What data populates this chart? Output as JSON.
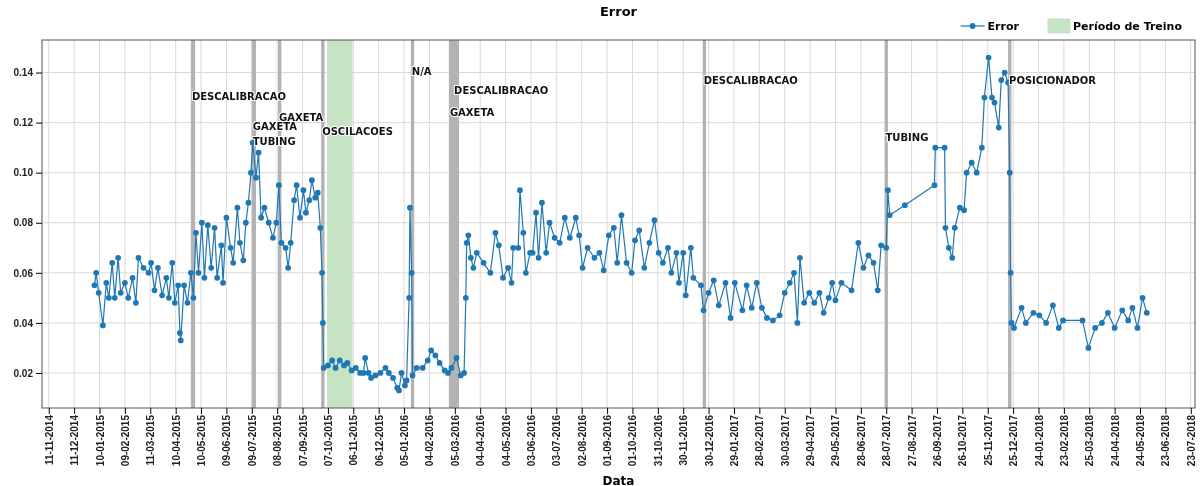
{
  "chart_data": {
    "type": "line",
    "title": "Error",
    "xlabel": "Data",
    "xlim": [
      "2014-11-03",
      "2018-07-28"
    ],
    "xticks": [
      {
        "value": "2014-11-11",
        "label": "11-11-2014"
      },
      {
        "value": "2014-12-11",
        "label": "11-12-2014"
      },
      {
        "value": "2015-01-10",
        "label": "10-01-2015"
      },
      {
        "value": "2015-02-09",
        "label": "09-02-2015"
      },
      {
        "value": "2015-03-11",
        "label": "11-03-2015"
      },
      {
        "value": "2015-04-10",
        "label": "10-04-2015"
      },
      {
        "value": "2015-05-10",
        "label": "10-05-2015"
      },
      {
        "value": "2015-06-09",
        "label": "09-06-2015"
      },
      {
        "value": "2015-07-09",
        "label": "09-07-2015"
      },
      {
        "value": "2015-08-08",
        "label": "08-08-2015"
      },
      {
        "value": "2015-09-07",
        "label": "07-09-2015"
      },
      {
        "value": "2015-10-07",
        "label": "07-10-2015"
      },
      {
        "value": "2015-11-06",
        "label": "06-11-2015"
      },
      {
        "value": "2015-12-06",
        "label": "06-12-2015"
      },
      {
        "value": "2016-01-05",
        "label": "05-01-2016"
      },
      {
        "value": "2016-02-04",
        "label": "04-02-2016"
      },
      {
        "value": "2016-03-05",
        "label": "05-03-2016"
      },
      {
        "value": "2016-04-04",
        "label": "04-04-2016"
      },
      {
        "value": "2016-05-04",
        "label": "04-05-2016"
      },
      {
        "value": "2016-06-03",
        "label": "03-06-2016"
      },
      {
        "value": "2016-07-03",
        "label": "03-07-2016"
      },
      {
        "value": "2016-08-02",
        "label": "02-08-2016"
      },
      {
        "value": "2016-09-01",
        "label": "01-09-2016"
      },
      {
        "value": "2016-10-01",
        "label": "01-10-2016"
      },
      {
        "value": "2016-10-31",
        "label": "31-10-2016"
      },
      {
        "value": "2016-11-30",
        "label": "30-11-2016"
      },
      {
        "value": "2016-12-30",
        "label": "30-12-2016"
      },
      {
        "value": "2017-01-29",
        "label": "29-01-2017"
      },
      {
        "value": "2017-02-28",
        "label": "28-02-2017"
      },
      {
        "value": "2017-03-30",
        "label": "30-03-2017"
      },
      {
        "value": "2017-04-29",
        "label": "29-04-2017"
      },
      {
        "value": "2017-05-29",
        "label": "29-05-2017"
      },
      {
        "value": "2017-06-28",
        "label": "28-06-2017"
      },
      {
        "value": "2017-07-28",
        "label": "28-07-2017"
      },
      {
        "value": "2017-08-27",
        "label": "27-08-2017"
      },
      {
        "value": "2017-09-26",
        "label": "26-09-2017"
      },
      {
        "value": "2017-10-26",
        "label": "26-10-2017"
      },
      {
        "value": "2017-11-25",
        "label": "25-11-2017"
      },
      {
        "value": "2017-12-25",
        "label": "25-12-2017"
      },
      {
        "value": "2018-01-24",
        "label": "24-01-2018"
      },
      {
        "value": "2018-02-23",
        "label": "23-02-2018"
      },
      {
        "value": "2018-03-25",
        "label": "25-03-2018"
      },
      {
        "value": "2018-04-24",
        "label": "24-04-2018"
      },
      {
        "value": "2018-05-24",
        "label": "24-05-2018"
      },
      {
        "value": "2018-06-23",
        "label": "23-06-2018"
      },
      {
        "value": "2018-07-23",
        "label": "23-07-2018"
      }
    ],
    "ylim": [
      0.006,
      0.153
    ],
    "yticks": [
      {
        "value": 0.02,
        "label": "0.02"
      },
      {
        "value": 0.04,
        "label": "0.04"
      },
      {
        "value": 0.06,
        "label": "0.06"
      },
      {
        "value": 0.08,
        "label": "0.08"
      },
      {
        "value": 0.1,
        "label": "0.10"
      },
      {
        "value": 0.12,
        "label": "0.12"
      },
      {
        "value": 0.14,
        "label": "0.14"
      }
    ],
    "grid": true,
    "legend": "top right",
    "marker": "circle",
    "line_style": "solid",
    "series": [
      {
        "name": "Error",
        "color": "#1f77b4",
        "x": [
          "2015-01-04",
          "2015-01-06",
          "2015-01-09",
          "2015-01-14",
          "2015-01-18",
          "2015-01-21",
          "2015-01-25",
          "2015-01-28",
          "2015-02-01",
          "2015-02-04",
          "2015-02-09",
          "2015-02-13",
          "2015-02-18",
          "2015-02-22",
          "2015-02-25",
          "2015-03-03",
          "2015-03-09",
          "2015-03-12",
          "2015-03-16",
          "2015-03-20",
          "2015-03-25",
          "2015-03-30",
          "2015-04-02",
          "2015-04-06",
          "2015-04-09",
          "2015-04-13",
          "2015-04-15",
          "2015-04-16",
          "2015-04-20",
          "2015-04-24",
          "2015-04-28",
          "2015-05-01",
          "2015-05-04",
          "2015-05-07",
          "2015-05-11",
          "2015-05-14",
          "2015-05-18",
          "2015-05-22",
          "2015-05-26",
          "2015-05-29",
          "2015-06-03",
          "2015-06-05",
          "2015-06-09",
          "2015-06-14",
          "2015-06-17",
          "2015-06-22",
          "2015-06-25",
          "2015-06-29",
          "2015-07-02",
          "2015-07-05",
          "2015-07-08",
          "2015-07-10",
          "2015-07-14",
          "2015-07-17",
          "2015-07-20",
          "2015-07-24",
          "2015-07-29",
          "2015-08-03",
          "2015-08-07",
          "2015-08-10",
          "2015-08-13",
          "2015-08-18",
          "2015-08-21",
          "2015-08-24",
          "2015-08-28",
          "2015-08-31",
          "2015-09-04",
          "2015-09-08",
          "2015-09-11",
          "2015-09-15",
          "2015-09-18",
          "2015-09-22",
          "2015-09-25",
          "2015-09-28",
          "2015-09-30",
          "2015-10-01",
          "2015-10-02",
          "2015-10-07",
          "2015-10-12",
          "2015-10-16",
          "2015-10-21",
          "2015-10-26",
          "2015-10-30",
          "2015-11-04",
          "2015-11-09",
          "2015-11-14",
          "2015-11-18",
          "2015-11-20",
          "2015-11-24",
          "2015-11-27",
          "2015-12-02",
          "2015-12-08",
          "2015-12-14",
          "2015-12-18",
          "2015-12-23",
          "2015-12-28",
          "2015-12-30",
          "2016-01-02",
          "2016-01-06",
          "2016-01-08",
          "2016-01-11",
          "2016-01-12",
          "2016-01-14",
          "2016-01-15",
          "2016-01-20",
          "2016-01-27",
          "2016-02-02",
          "2016-02-06",
          "2016-02-11",
          "2016-02-16",
          "2016-02-22",
          "2016-02-26",
          "2016-03-01",
          "2016-03-07",
          "2016-03-12",
          "2016-03-16",
          "2016-03-18",
          "2016-03-19",
          "2016-03-21",
          "2016-03-24",
          "2016-03-27",
          "2016-03-31",
          "2016-04-08",
          "2016-04-16",
          "2016-04-22",
          "2016-04-26",
          "2016-05-01",
          "2016-05-07",
          "2016-05-11",
          "2016-05-13",
          "2016-05-19",
          "2016-05-21",
          "2016-05-25",
          "2016-05-28",
          "2016-06-02",
          "2016-06-05",
          "2016-06-09",
          "2016-06-12",
          "2016-06-16",
          "2016-06-21",
          "2016-06-25",
          "2016-07-01",
          "2016-07-07",
          "2016-07-13",
          "2016-07-19",
          "2016-07-26",
          "2016-07-30",
          "2016-08-03",
          "2016-08-09",
          "2016-08-17",
          "2016-08-23",
          "2016-08-28",
          "2016-09-03",
          "2016-09-09",
          "2016-09-13",
          "2016-09-18",
          "2016-09-24",
          "2016-09-30",
          "2016-10-04",
          "2016-10-09",
          "2016-10-15",
          "2016-10-21",
          "2016-10-27",
          "2016-11-01",
          "2016-11-06",
          "2016-11-12",
          "2016-11-16",
          "2016-11-22",
          "2016-11-25",
          "2016-11-30",
          "2016-12-03",
          "2016-12-09",
          "2016-12-12",
          "2016-12-21",
          "2016-12-24",
          "2016-12-30",
          "2017-01-05",
          "2017-01-11",
          "2017-01-19",
          "2017-01-25",
          "2017-01-30",
          "2017-02-08",
          "2017-02-13",
          "2017-02-19",
          "2017-02-25",
          "2017-03-03",
          "2017-03-09",
          "2017-03-16",
          "2017-03-24",
          "2017-03-30",
          "2017-04-05",
          "2017-04-10",
          "2017-04-14",
          "2017-04-17",
          "2017-04-22",
          "2017-04-28",
          "2017-05-04",
          "2017-05-10",
          "2017-05-15",
          "2017-05-21",
          "2017-05-25",
          "2017-05-29",
          "2017-06-05",
          "2017-06-17",
          "2017-06-25",
          "2017-07-01",
          "2017-07-07",
          "2017-07-13",
          "2017-07-18",
          "2017-07-22",
          "2017-07-28",
          "2017-07-30",
          "2017-08-01",
          "2017-08-19",
          "2017-09-23",
          "2017-09-24",
          "2017-10-05",
          "2017-10-06",
          "2017-10-10",
          "2017-10-14",
          "2017-10-17",
          "2017-10-23",
          "2017-10-28",
          "2017-10-31",
          "2017-11-06",
          "2017-11-12",
          "2017-11-18",
          "2017-11-21",
          "2017-11-26",
          "2017-11-30",
          "2017-12-03",
          "2017-12-08",
          "2017-12-11",
          "2017-12-15",
          "2017-12-19",
          "2017-12-21",
          "2017-12-22",
          "2017-12-23",
          "2017-12-26",
          "2018-01-04",
          "2018-01-09",
          "2018-01-18",
          "2018-01-25",
          "2018-02-02",
          "2018-02-10",
          "2018-02-17",
          "2018-02-22",
          "2018-03-17",
          "2018-03-24",
          "2018-04-01",
          "2018-04-09",
          "2018-04-16",
          "2018-04-24",
          "2018-05-03",
          "2018-05-10",
          "2018-05-15",
          "2018-05-21",
          "2018-05-27",
          "2018-06-01"
        ],
        "values": [
          0.055,
          0.06,
          0.052,
          0.039,
          0.056,
          0.05,
          0.064,
          0.05,
          0.066,
          0.052,
          0.056,
          0.05,
          0.058,
          0.048,
          0.066,
          0.062,
          0.06,
          0.064,
          0.053,
          0.062,
          0.051,
          0.058,
          0.05,
          0.064,
          0.048,
          0.055,
          0.036,
          0.033,
          0.055,
          0.048,
          0.06,
          0.05,
          0.076,
          0.06,
          0.08,
          0.058,
          0.079,
          0.062,
          0.078,
          0.058,
          0.071,
          0.056,
          0.082,
          0.07,
          0.064,
          0.086,
          0.072,
          0.065,
          0.08,
          0.088,
          0.1,
          0.112,
          0.098,
          0.108,
          0.082,
          0.086,
          0.08,
          0.074,
          0.08,
          0.095,
          0.072,
          0.07,
          0.062,
          0.072,
          0.089,
          0.095,
          0.082,
          0.093,
          0.084,
          0.089,
          0.097,
          0.09,
          0.092,
          0.078,
          0.06,
          0.04,
          0.022,
          0.023,
          0.025,
          0.022,
          0.025,
          0.023,
          0.024,
          0.021,
          0.022,
          0.02,
          0.02,
          0.026,
          0.02,
          0.018,
          0.019,
          0.02,
          0.022,
          0.02,
          0.018,
          0.014,
          0.013,
          0.02,
          0.015,
          0.017,
          0.05,
          0.086,
          0.06,
          0.019,
          0.022,
          0.022,
          0.025,
          0.029,
          0.027,
          0.024,
          0.021,
          0.02,
          0.022,
          0.026,
          0.019,
          0.02,
          0.05,
          0.072,
          0.075,
          0.066,
          0.062,
          0.068,
          0.064,
          0.06,
          0.076,
          0.071,
          0.058,
          0.062,
          0.056,
          0.07,
          0.07,
          0.093,
          0.076,
          0.06,
          0.068,
          0.068,
          0.084,
          0.066,
          0.088,
          0.068,
          0.08,
          0.074,
          0.072,
          0.082,
          0.074,
          0.082,
          0.075,
          0.062,
          0.07,
          0.066,
          0.068,
          0.061,
          0.075,
          0.078,
          0.064,
          0.083,
          0.064,
          0.06,
          0.073,
          0.077,
          0.062,
          0.072,
          0.081,
          0.068,
          0.064,
          0.07,
          0.06,
          0.068,
          0.056,
          0.068,
          0.051,
          0.07,
          0.058,
          0.055,
          0.045,
          0.052,
          0.057,
          0.047,
          0.056,
          0.042,
          0.056,
          0.045,
          0.055,
          0.046,
          0.056,
          0.046,
          0.042,
          0.041,
          0.043,
          0.052,
          0.056,
          0.06,
          0.04,
          0.066,
          0.048,
          0.052,
          0.048,
          0.052,
          0.044,
          0.05,
          0.056,
          0.049,
          0.056,
          0.053,
          0.072,
          0.062,
          0.067,
          0.064,
          0.053,
          0.071,
          0.07,
          0.093,
          0.083,
          0.087,
          0.095,
          0.11,
          0.11,
          0.078,
          0.07,
          0.066,
          0.078,
          0.086,
          0.085,
          0.1,
          0.104,
          0.1,
          0.11,
          0.13,
          0.146,
          0.13,
          0.128,
          0.118,
          0.137,
          0.14,
          0.136,
          0.1,
          0.06,
          0.04,
          0.038,
          0.046,
          0.04,
          0.044,
          0.043,
          0.04,
          0.047,
          0.038,
          0.041,
          0.041,
          0.03,
          0.038,
          0.04,
          0.044,
          0.038,
          0.045,
          0.041,
          0.046,
          0.038,
          0.05,
          0.044
        ]
      }
    ],
    "bands": [
      {
        "axis": "x",
        "from": "2015-04-28",
        "to": "2015-05-03",
        "color": "#b3b3b3"
      },
      {
        "axis": "x",
        "from": "2015-07-09",
        "to": "2015-07-14",
        "color": "#b3b3b3"
      },
      {
        "axis": "x",
        "from": "2015-08-09",
        "to": "2015-08-13",
        "color": "#b3b3b3"
      },
      {
        "axis": "x",
        "from": "2015-09-29",
        "to": "2015-10-03",
        "color": "#b3b3b3"
      },
      {
        "axis": "x",
        "from": "2015-10-06",
        "to": "2015-11-05",
        "color": "#c6e3c3",
        "label": "Período de Treino"
      },
      {
        "axis": "x",
        "from": "2016-01-13",
        "to": "2016-01-17",
        "color": "#b3b3b3"
      },
      {
        "axis": "x",
        "from": "2016-02-27",
        "to": "2016-03-10",
        "color": "#b3b3b3"
      },
      {
        "axis": "x",
        "from": "2016-12-23",
        "to": "2016-12-27",
        "color": "#b3b3b3"
      },
      {
        "axis": "x",
        "from": "2017-07-26",
        "to": "2017-07-30",
        "color": "#b3b3b3"
      },
      {
        "axis": "x",
        "from": "2017-12-19",
        "to": "2017-12-23",
        "color": "#b3b3b3"
      }
    ],
    "annotations": [
      {
        "text": "DESCALIBRACAO",
        "x": "2015-04-28",
        "y": 0.129
      },
      {
        "text": "GAXETA",
        "x": "2015-07-09",
        "y": 0.117
      },
      {
        "text": "TUBING",
        "x": "2015-07-09",
        "y": 0.111
      },
      {
        "text": "GAXETA",
        "x": "2015-08-09",
        "y": 0.1205
      },
      {
        "text": "OSCILACOES",
        "x": "2015-09-29",
        "y": 0.115
      },
      {
        "text": "N/A",
        "x": "2016-01-13",
        "y": 0.139
      },
      {
        "text": "GAXETA",
        "x": "2016-02-27",
        "y": 0.1225
      },
      {
        "text": "DESCALIBRACAO",
        "x": "2016-03-03",
        "y": 0.1315
      },
      {
        "text": "DESCALIBRACAO",
        "x": "2016-12-23",
        "y": 0.1355
      },
      {
        "text": "TUBING",
        "x": "2017-07-26",
        "y": 0.1125
      },
      {
        "text": "POSICIONADOR",
        "x": "2017-12-19",
        "y": 0.1355
      }
    ]
  }
}
